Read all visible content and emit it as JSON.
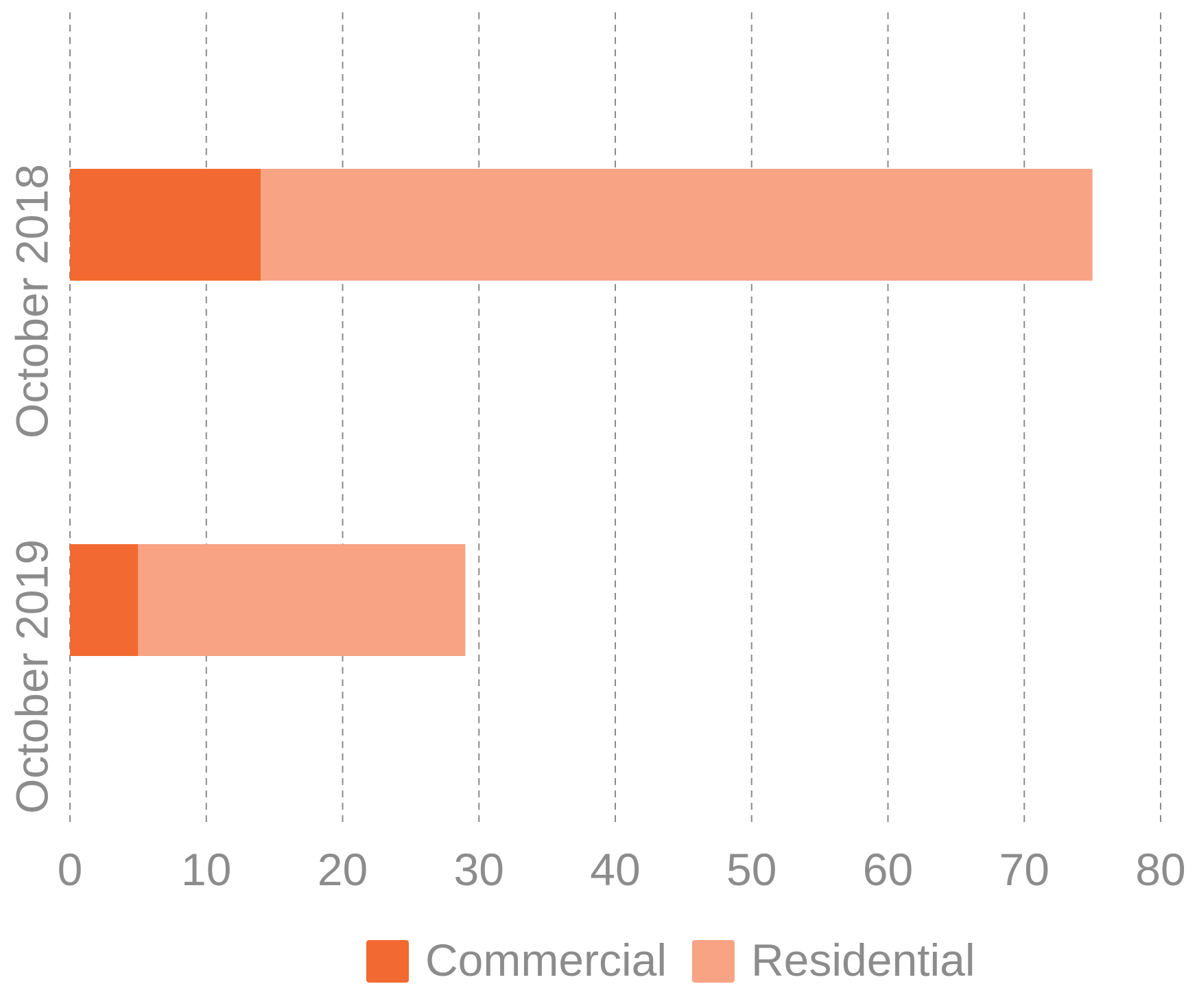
{
  "chart_data": {
    "type": "bar",
    "orientation": "horizontal",
    "stacked": true,
    "categories": [
      "October 2018",
      "October 2019"
    ],
    "series": [
      {
        "name": "Commercial",
        "values": [
          14,
          5
        ],
        "color": "#f26a31"
      },
      {
        "name": "Residential",
        "values": [
          61,
          24
        ],
        "color": "#f7a384"
      }
    ],
    "xlim": [
      0,
      80
    ],
    "x_ticks": [
      "0",
      "10",
      "20",
      "30",
      "40",
      "50",
      "60",
      "70",
      "80"
    ],
    "grid": "vertical dashed",
    "legend_position": "bottom"
  }
}
